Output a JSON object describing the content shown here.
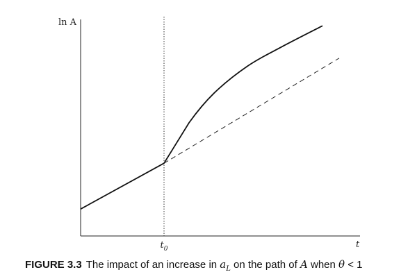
{
  "chart_data": {
    "type": "line",
    "ylabel": "ln A",
    "xlabel": "t",
    "x_markers": [
      {
        "label": "t",
        "subscript": "0"
      }
    ],
    "series": [
      {
        "style": "solid",
        "points": [
          [
            0,
            1.0
          ],
          [
            1,
            2.7
          ],
          [
            1.3,
            4.2
          ],
          [
            1.6,
            5.3
          ],
          [
            2.0,
            6.3
          ],
          [
            2.4,
            7.0
          ],
          [
            2.9,
            7.8
          ]
        ]
      },
      {
        "style": "dashed",
        "points": [
          [
            1,
            2.7
          ],
          [
            3.1,
            6.6
          ]
        ]
      }
    ],
    "xlim": [
      0,
      3.6
    ],
    "ylim": [
      0,
      8.5
    ],
    "grid": false
  },
  "caption": {
    "figure_number": "FIGURE 3.3",
    "text_before": "The impact of an increase in ",
    "symbol": "a",
    "symbol_subscript": "L",
    "text_middle": " on the path of ",
    "variable": "A",
    "text_after": " when ",
    "condition_symbol": "θ",
    "condition_rest": " < 1"
  }
}
